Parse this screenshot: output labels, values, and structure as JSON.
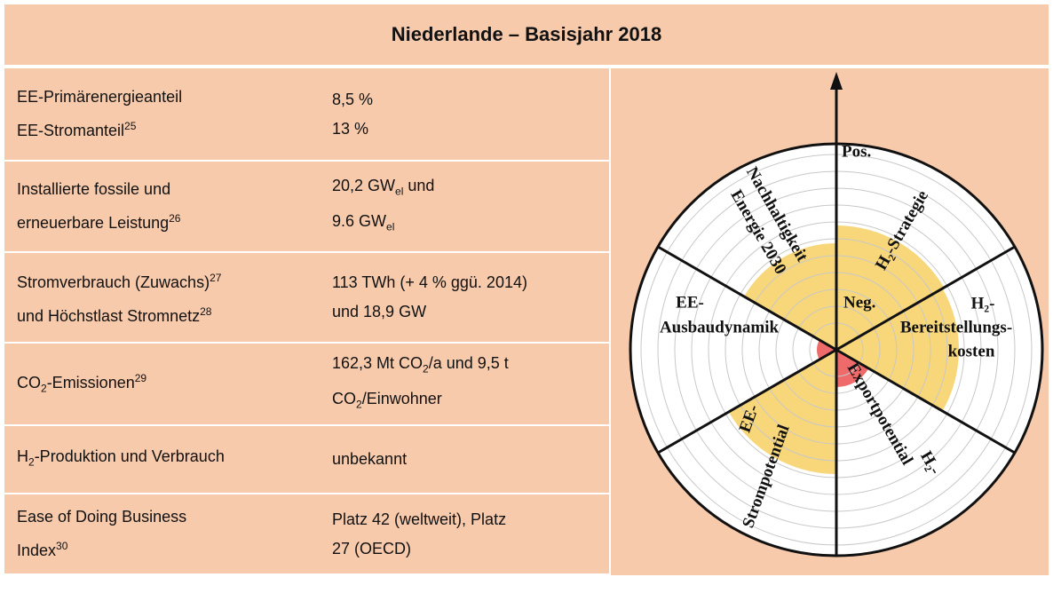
{
  "title": "Niederlande – Basisjahr 2018",
  "table": {
    "rows": [
      [
        [
          [
            "EE-Primärenergieanteil"
          ],
          [
            "EE-Stromanteil",
            {
              "sup": "25"
            }
          ]
        ],
        [
          [
            "8,5 %"
          ],
          [
            "13 %"
          ]
        ]
      ],
      [
        [
          [
            "Installierte fossile und"
          ],
          [
            "erneuerbare Leistung",
            {
              "sup": "26"
            }
          ]
        ],
        [
          [
            "20,2 GW",
            {
              "sub": "el"
            },
            " und"
          ],
          [
            "9.6 GW",
            {
              "sub": "el"
            }
          ]
        ]
      ],
      [
        [
          [
            "Stromverbrauch (Zuwachs)",
            {
              "sup": "27"
            }
          ],
          [
            "und Höchstlast Stromnetz",
            {
              "sup": "28"
            }
          ]
        ],
        [
          [
            "113 TWh (+ 4 % ggü. 2014)"
          ],
          [
            "und 18,9 GW"
          ]
        ]
      ],
      [
        [
          [
            "CO",
            {
              "sub": "2"
            },
            "-Emissionen",
            {
              "sup": "29"
            }
          ]
        ],
        [
          [
            "162,3 Mt CO",
            {
              "sub": "2"
            },
            "/a und 9,5 t"
          ],
          [
            "CO",
            {
              "sub": "2"
            },
            "/Einwohner"
          ]
        ]
      ],
      [
        [
          [
            "H",
            {
              "sub": "2"
            },
            "-Produktion und Verbrauch"
          ]
        ],
        [
          [
            "unbekannt"
          ]
        ]
      ],
      [
        [
          [
            "Ease of Doing Business"
          ],
          [
            "Index",
            {
              "sup": "30"
            }
          ]
        ],
        [
          [
            "Platz 42 (weltweit), Platz"
          ],
          [
            "27 (OECD)"
          ]
        ]
      ]
    ]
  },
  "diagram": {
    "pos": "Pos.",
    "neg": "Neg.",
    "sectors": [
      [
        "Nachhaltigkeit",
        "Energie 2030"
      ],
      [
        "H₂-Strategie"
      ],
      [
        "H₂-",
        "Bereitstellungs-",
        "kosten"
      ],
      [
        "Exportpotential",
        "H₂-"
      ],
      [
        "EE-",
        "Strompotential"
      ],
      [
        "EE-",
        "Ausbaudynamik"
      ]
    ]
  }
}
